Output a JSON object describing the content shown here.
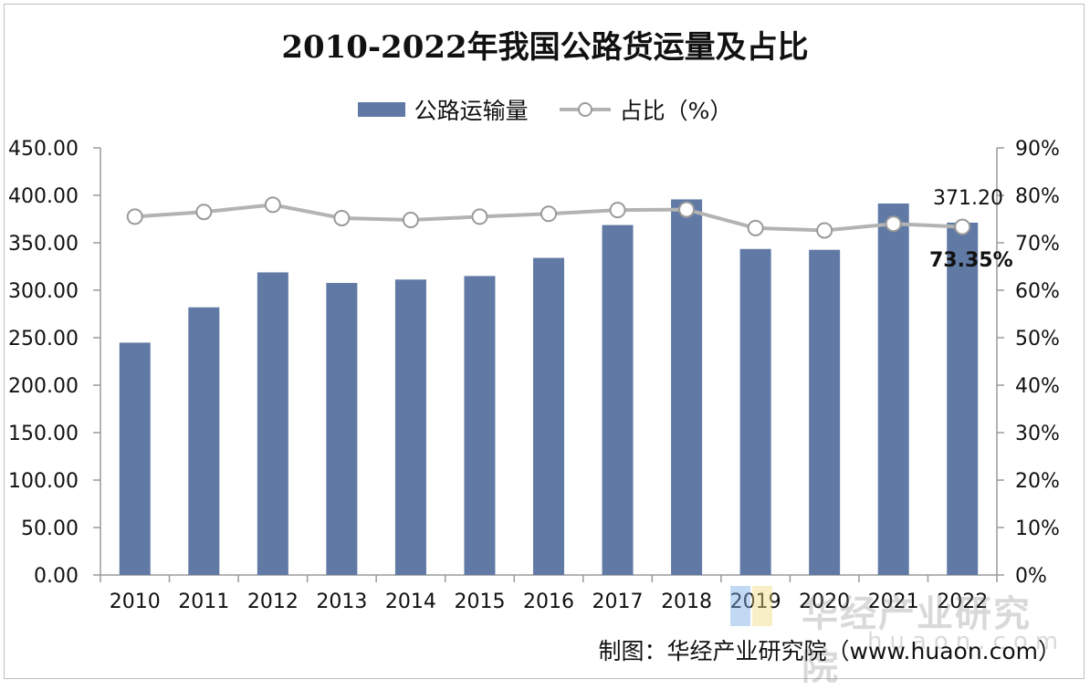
{
  "chart_data": {
    "type": "bar",
    "title": "2010-2022年我国公路货运量及占比",
    "categories": [
      "2010",
      "2011",
      "2012",
      "2013",
      "2014",
      "2015",
      "2016",
      "2017",
      "2018",
      "2019",
      "2020",
      "2021",
      "2022"
    ],
    "series": [
      {
        "name": "公路运输量",
        "type": "bar",
        "axis": "left",
        "color": "#617aa5",
        "values": [
          244.8,
          282.0,
          318.8,
          307.7,
          311.3,
          315.0,
          334.1,
          368.7,
          395.7,
          343.5,
          342.6,
          391.4,
          371.2
        ]
      },
      {
        "name": "占比（%）",
        "type": "line",
        "axis": "right",
        "color": "#b3b3b3",
        "values": [
          75.5,
          76.5,
          78.0,
          75.2,
          74.8,
          75.5,
          76.1,
          76.9,
          77.0,
          73.1,
          72.6,
          74.0,
          73.35
        ]
      }
    ],
    "left_axis": {
      "ylim": [
        0,
        450
      ],
      "ticks": [
        "0.00",
        "50.00",
        "100.00",
        "150.00",
        "200.00",
        "250.00",
        "300.00",
        "350.00",
        "400.00",
        "450.00"
      ]
    },
    "right_axis": {
      "ylim": [
        0,
        90
      ],
      "ticks": [
        "0%",
        "10%",
        "20%",
        "30%",
        "40%",
        "50%",
        "60%",
        "70%",
        "80%",
        "90%"
      ]
    },
    "annotations": [
      "371.20",
      "73.35%"
    ],
    "grid": false,
    "legend_position": "top-center"
  },
  "source": "制图：华经产业研究院（www.huaon.com）",
  "watermark": {
    "text": "华经产业研究院",
    "url": "huaon.com"
  }
}
